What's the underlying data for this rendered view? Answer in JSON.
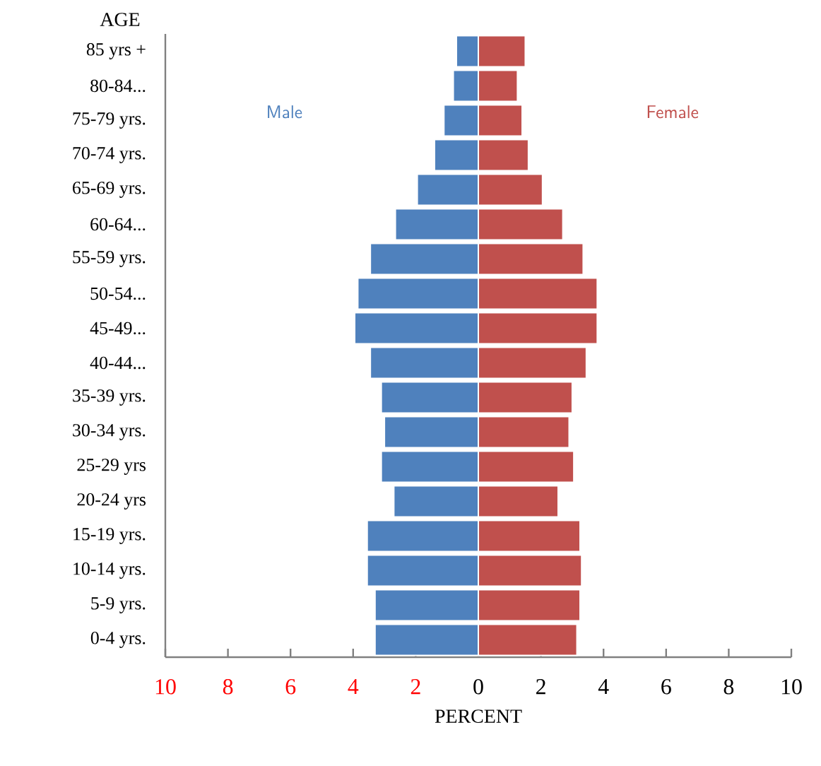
{
  "chart_data": {
    "type": "bar",
    "orientation": "horizontal",
    "xlabel": "PERCENT",
    "ylabel": "AGE",
    "categories": [
      "85 yrs +",
      "80-84...",
      "75-79 yrs.",
      "70-74 yrs.",
      "65-69 yrs.",
      "60-64...",
      "55-59 yrs.",
      "50-54...",
      "45-49...",
      "40-44...",
      "35-39 yrs.",
      "30-34 yrs.",
      "25-29 yrs",
      "20-24 yrs",
      "15-19 yrs.",
      "10-14 yrs.",
      "5-9 yrs.",
      "0-4 yrs."
    ],
    "series": [
      {
        "name": "Male",
        "color": "#4f81bd",
        "values": [
          -0.7,
          -0.8,
          -1.1,
          -1.4,
          -1.95,
          -2.65,
          -3.45,
          -3.85,
          -3.95,
          -3.45,
          -3.1,
          -3.0,
          -3.1,
          -2.7,
          -3.55,
          -3.55,
          -3.3,
          -3.3
        ]
      },
      {
        "name": "Female",
        "color": "#c0504d",
        "values": [
          1.5,
          1.25,
          1.4,
          1.6,
          2.05,
          2.7,
          3.35,
          3.8,
          3.8,
          3.45,
          3.0,
          2.9,
          3.05,
          2.55,
          3.25,
          3.3,
          3.25,
          3.15
        ]
      }
    ],
    "xlim": [
      -10,
      10
    ],
    "xticks": [
      {
        "value": -10,
        "label": "10"
      },
      {
        "value": -8,
        "label": "8"
      },
      {
        "value": -6,
        "label": "6"
      },
      {
        "value": -4,
        "label": "4"
      },
      {
        "value": -2,
        "label": "2"
      },
      0,
      2,
      4,
      6,
      8,
      10
    ],
    "stacked": true,
    "legend": false,
    "grid": false
  }
}
